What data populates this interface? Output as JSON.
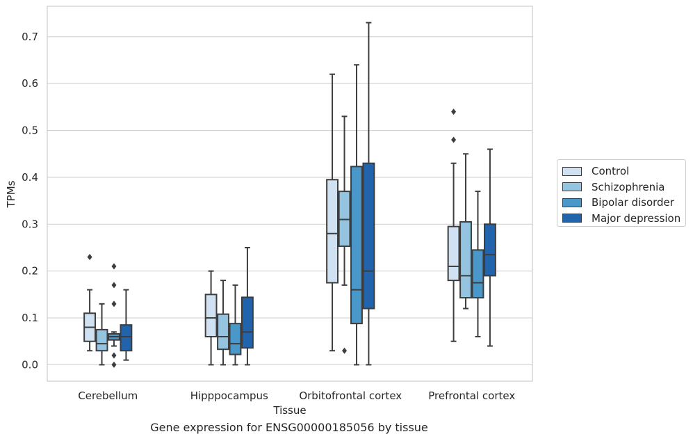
{
  "chart_data": {
    "type": "box",
    "xlabel": "Tissue",
    "ylabel": "TPMs",
    "caption": "Gene expression for ENSG00000185056 by tissue",
    "ylim": [
      -0.035,
      0.765
    ],
    "yticks": [
      0.0,
      0.1,
      0.2,
      0.3,
      0.4,
      0.5,
      0.6,
      0.7
    ],
    "ytick_labels": [
      "0.0",
      "0.1",
      "0.2",
      "0.3",
      "0.4",
      "0.5",
      "0.6",
      "0.7"
    ],
    "grid": "horizontal",
    "legend_position": "right",
    "categories": [
      "Cerebellum",
      "Hipppocampus",
      "Orbitofrontal cortex",
      "Prefrontal cortex"
    ],
    "series": [
      {
        "name": "Control",
        "color": "#d0e1f2",
        "boxes": [
          {
            "min": 0.03,
            "q1": 0.05,
            "median": 0.08,
            "q3": 0.11,
            "max": 0.16,
            "outliers": [
              0.23
            ]
          },
          {
            "min": 0.0,
            "q1": 0.06,
            "median": 0.1,
            "q3": 0.15,
            "max": 0.2,
            "outliers": []
          },
          {
            "min": 0.03,
            "q1": 0.175,
            "median": 0.28,
            "q3": 0.395,
            "max": 0.62,
            "outliers": []
          },
          {
            "min": 0.05,
            "q1": 0.18,
            "median": 0.21,
            "q3": 0.295,
            "max": 0.43,
            "outliers": [
              0.48,
              0.54
            ]
          }
        ]
      },
      {
        "name": "Schizophrenia",
        "color": "#94c4df",
        "boxes": [
          {
            "min": 0.0,
            "q1": 0.03,
            "median": 0.045,
            "q3": 0.075,
            "max": 0.13,
            "outliers": []
          },
          {
            "min": 0.0,
            "q1": 0.033,
            "median": 0.06,
            "q3": 0.108,
            "max": 0.18,
            "outliers": []
          },
          {
            "min": 0.17,
            "q1": 0.253,
            "median": 0.31,
            "q3": 0.37,
            "max": 0.53,
            "outliers": [
              0.03
            ]
          },
          {
            "min": 0.12,
            "q1": 0.143,
            "median": 0.19,
            "q3": 0.305,
            "max": 0.45,
            "outliers": []
          }
        ]
      },
      {
        "name": "Bipolar disorder",
        "color": "#4a98c9",
        "boxes": [
          {
            "min": 0.04,
            "q1": 0.053,
            "median": 0.06,
            "q3": 0.066,
            "max": 0.07,
            "outliers": [
              0.21,
              0.17,
              0.13,
              0.02,
              0.0
            ]
          },
          {
            "min": 0.0,
            "q1": 0.022,
            "median": 0.045,
            "q3": 0.088,
            "max": 0.17,
            "outliers": []
          },
          {
            "min": 0.0,
            "q1": 0.088,
            "median": 0.16,
            "q3": 0.423,
            "max": 0.64,
            "outliers": []
          },
          {
            "min": 0.06,
            "q1": 0.143,
            "median": 0.175,
            "q3": 0.245,
            "max": 0.37,
            "outliers": []
          }
        ]
      },
      {
        "name": "Major depression",
        "color": "#2164ab",
        "boxes": [
          {
            "min": 0.01,
            "q1": 0.03,
            "median": 0.06,
            "q3": 0.085,
            "max": 0.16,
            "outliers": []
          },
          {
            "min": 0.0,
            "q1": 0.036,
            "median": 0.07,
            "q3": 0.144,
            "max": 0.25,
            "outliers": []
          },
          {
            "min": 0.0,
            "q1": 0.12,
            "median": 0.2,
            "q3": 0.43,
            "max": 0.73,
            "outliers": []
          },
          {
            "min": 0.04,
            "q1": 0.19,
            "median": 0.235,
            "q3": 0.3,
            "max": 0.46,
            "outliers": []
          }
        ]
      }
    ]
  }
}
